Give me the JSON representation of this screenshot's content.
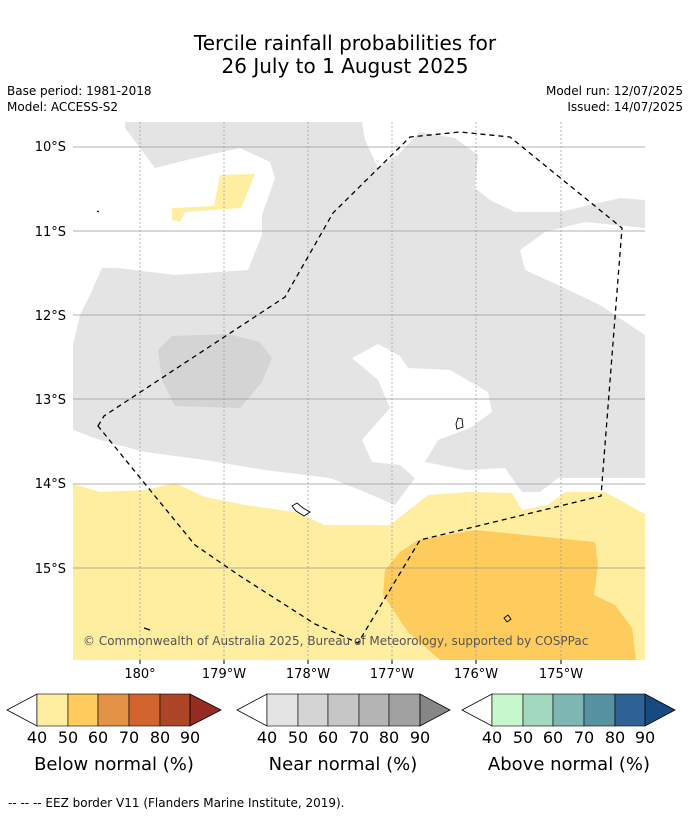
{
  "header": {
    "title_line1": "Tercile rainfall probabilities for",
    "title_line2": "26 July to 1 August 2025",
    "base_period": "Base period: 1981-2018",
    "model": "Model: ACCESS-S2",
    "model_run": "Model run: 12/07/2025",
    "issued": "Issued: 14/07/2025"
  },
  "map": {
    "lat_labels": [
      "10°S",
      "11°S",
      "12°S",
      "13°S",
      "14°S",
      "15°S"
    ],
    "lon_labels": [
      "180°",
      "179°W",
      "178°W",
      "177°W",
      "176°W",
      "175°W"
    ],
    "copyright": "© Commonwealth of Australia 2025, Bureau of Meteorology, supported by COSPPac",
    "colors": {
      "near_normal_40": "#e4e4e4",
      "near_normal_50": "#d4d4d4",
      "below_normal_40": "#ffeda0",
      "below_normal_50": "#fecc5c"
    }
  },
  "legends": [
    {
      "title": "Below normal (%)",
      "values": [
        "40",
        "50",
        "60",
        "70",
        "80",
        "90"
      ],
      "colors": [
        "#ffeda0",
        "#fecc5c",
        "#e39345",
        "#d0632e",
        "#ac4627",
        "#962b22"
      ]
    },
    {
      "title": "Near normal (%)",
      "values": [
        "40",
        "50",
        "60",
        "70",
        "80",
        "90"
      ],
      "colors": [
        "#e4e4e4",
        "#d4d4d4",
        "#c6c6c6",
        "#b4b4b4",
        "#a1a1a1",
        "#868686"
      ]
    },
    {
      "title": "Above normal (%)",
      "values": [
        "40",
        "50",
        "60",
        "70",
        "80",
        "90"
      ],
      "colors": [
        "#c7f7cc",
        "#a1d8bf",
        "#7db6b2",
        "#5592a2",
        "#2e6295",
        "#174a7e"
      ]
    }
  ],
  "footer": "--  --  -- EEZ border V11 (Flanders Marine Institute, 2019)."
}
